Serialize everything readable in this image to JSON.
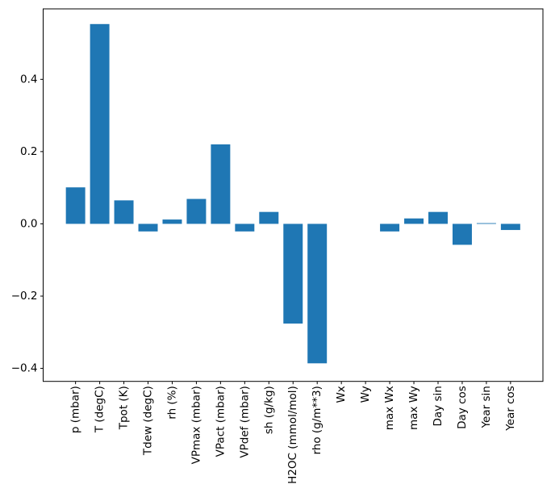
{
  "figure": {
    "background": "#ffffff",
    "spine_color": "#000000",
    "tick_color": "#000000",
    "text_color": "#000000"
  },
  "chart_data": {
    "type": "bar",
    "title": "",
    "xlabel": "",
    "ylabel": "",
    "grid": false,
    "legend": null,
    "bar_color": "#1f77b4",
    "xtick_rotation": 90,
    "categories": [
      "p (mbar)",
      "T (degC)",
      "Tpot (K)",
      "Tdew (degC)",
      "rh (%)",
      "VPmax (mbar)",
      "VPact (mbar)",
      "VPdef (mbar)",
      "sh (g/kg)",
      "H2OC (mmol/mol)",
      "rho (g/m**3)",
      "Wx",
      "Wy",
      "max Wx",
      "max Wy",
      "Day sin",
      "Day cos",
      "Year sin",
      "Year cos"
    ],
    "values": [
      0.101,
      0.553,
      0.065,
      -0.021,
      0.012,
      0.069,
      0.22,
      -0.021,
      0.033,
      -0.276,
      -0.386,
      0.0,
      0.0,
      -0.021,
      0.015,
      0.033,
      -0.058,
      0.002,
      -0.017
    ],
    "ylim": [
      -0.436,
      0.595
    ],
    "yticks": [
      0.4,
      0.2,
      0.0,
      -0.2,
      -0.4
    ],
    "ytick_labels": [
      "0.4",
      "0.2",
      "0.0",
      "−0.2",
      "−0.4"
    ]
  }
}
